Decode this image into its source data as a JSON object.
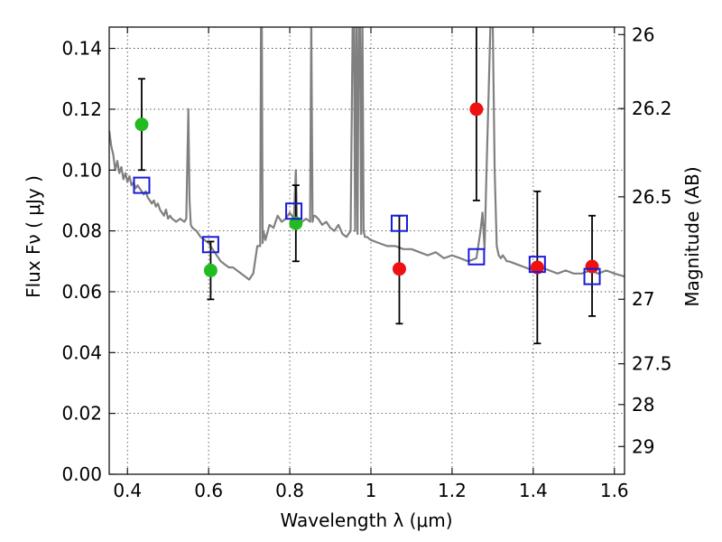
{
  "chart_data": {
    "type": "scatter",
    "xlabel": "Wavelength  λ (μm)",
    "ylabel": "Flux  Fν  ( μJy )",
    "ylabel_right": "Magnitude (AB)",
    "xlim": [
      0.355,
      1.625
    ],
    "ylim": [
      0.0,
      0.147
    ],
    "grid": true,
    "x_ticks": [
      {
        "value": 0.4,
        "label": "0.4"
      },
      {
        "value": 0.6,
        "label": "0.6"
      },
      {
        "value": 0.8,
        "label": "0.8"
      },
      {
        "value": 1.0,
        "label": "1"
      },
      {
        "value": 1.2,
        "label": "1.2"
      },
      {
        "value": 1.4,
        "label": "1.4"
      },
      {
        "value": 1.6,
        "label": "1.6"
      }
    ],
    "y_ticks": [
      {
        "value": 0.0,
        "label": "0.00"
      },
      {
        "value": 0.02,
        "label": "0.02"
      },
      {
        "value": 0.04,
        "label": "0.04"
      },
      {
        "value": 0.06,
        "label": "0.06"
      },
      {
        "value": 0.08,
        "label": "0.08"
      },
      {
        "value": 0.1,
        "label": "0.10"
      },
      {
        "value": 0.12,
        "label": "0.12"
      },
      {
        "value": 0.14,
        "label": "0.14"
      }
    ],
    "right_ticks": [
      {
        "mag": 26.0,
        "label": "26"
      },
      {
        "mag": 26.2,
        "label": "26.2"
      },
      {
        "mag": 26.5,
        "label": "26.5"
      },
      {
        "mag": 27.0,
        "label": "27"
      },
      {
        "mag": 27.5,
        "label": "27.5"
      },
      {
        "mag": 28.0,
        "label": "28"
      },
      {
        "mag": 29.0,
        "label": "29"
      }
    ],
    "colors": {
      "spectrum": "#808080",
      "green_points": "#22bb22",
      "red_points": "#ee1111",
      "model_squares": "#1a1ad8",
      "errorbar": "#000000"
    },
    "spectrum": {
      "x": [
        0.355,
        0.36,
        0.365,
        0.37,
        0.375,
        0.38,
        0.385,
        0.39,
        0.395,
        0.4,
        0.405,
        0.41,
        0.415,
        0.42,
        0.425,
        0.43,
        0.435,
        0.44,
        0.445,
        0.45,
        0.455,
        0.46,
        0.465,
        0.47,
        0.475,
        0.48,
        0.485,
        0.49,
        0.495,
        0.5,
        0.505,
        0.51,
        0.52,
        0.53,
        0.54,
        0.545,
        0.55,
        0.553,
        0.556,
        0.56,
        0.57,
        0.58,
        0.59,
        0.6,
        0.61,
        0.62,
        0.63,
        0.64,
        0.65,
        0.66,
        0.67,
        0.68,
        0.69,
        0.7,
        0.71,
        0.72,
        0.727,
        0.729,
        0.731,
        0.733,
        0.735,
        0.74,
        0.75,
        0.76,
        0.77,
        0.78,
        0.79,
        0.8,
        0.81,
        0.815,
        0.818,
        0.82,
        0.822,
        0.83,
        0.84,
        0.85,
        0.853,
        0.856,
        0.859,
        0.862,
        0.87,
        0.88,
        0.89,
        0.9,
        0.91,
        0.92,
        0.93,
        0.94,
        0.95,
        0.955,
        0.958,
        0.961,
        0.964,
        0.967,
        0.97,
        0.973,
        0.976,
        0.979,
        0.982,
        0.985,
        0.99,
        1.0,
        1.02,
        1.04,
        1.06,
        1.08,
        1.1,
        1.12,
        1.14,
        1.16,
        1.18,
        1.2,
        1.22,
        1.24,
        1.26,
        1.27,
        1.275,
        1.28,
        1.285,
        1.29,
        1.295,
        1.3,
        1.305,
        1.31,
        1.315,
        1.32,
        1.325,
        1.33,
        1.335,
        1.34,
        1.36,
        1.38,
        1.4,
        1.42,
        1.44,
        1.46,
        1.48,
        1.5,
        1.52,
        1.54,
        1.56,
        1.58,
        1.6,
        1.625
      ],
      "y": [
        0.113,
        0.108,
        0.105,
        0.1,
        0.103,
        0.099,
        0.101,
        0.097,
        0.099,
        0.096,
        0.098,
        0.095,
        0.096,
        0.094,
        0.095,
        0.094,
        0.093,
        0.092,
        0.093,
        0.091,
        0.09,
        0.089,
        0.09,
        0.088,
        0.089,
        0.087,
        0.086,
        0.085,
        0.087,
        0.084,
        0.085,
        0.084,
        0.083,
        0.084,
        0.083,
        0.084,
        0.12,
        0.09,
        0.082,
        0.081,
        0.08,
        0.078,
        0.077,
        0.076,
        0.074,
        0.072,
        0.07,
        0.069,
        0.068,
        0.068,
        0.067,
        0.066,
        0.065,
        0.064,
        0.066,
        0.075,
        0.075,
        0.15,
        0.15,
        0.076,
        0.08,
        0.077,
        0.082,
        0.081,
        0.085,
        0.083,
        0.084,
        0.086,
        0.084,
        0.1,
        0.082,
        0.082,
        0.083,
        0.083,
        0.084,
        0.083,
        0.15,
        0.083,
        0.085,
        0.085,
        0.084,
        0.082,
        0.083,
        0.081,
        0.08,
        0.082,
        0.079,
        0.078,
        0.08,
        0.15,
        0.15,
        0.08,
        0.15,
        0.079,
        0.15,
        0.15,
        0.079,
        0.15,
        0.08,
        0.078,
        0.078,
        0.077,
        0.076,
        0.075,
        0.075,
        0.074,
        0.074,
        0.073,
        0.072,
        0.073,
        0.071,
        0.072,
        0.071,
        0.07,
        0.071,
        0.08,
        0.086,
        0.074,
        0.1,
        0.125,
        0.15,
        0.15,
        0.1,
        0.075,
        0.072,
        0.071,
        0.072,
        0.071,
        0.07,
        0.07,
        0.069,
        0.068,
        0.067,
        0.068,
        0.067,
        0.066,
        0.067,
        0.066,
        0.066,
        0.067,
        0.066,
        0.067,
        0.066,
        0.065
      ]
    },
    "series": [
      {
        "marker": "circle",
        "color": "green",
        "points": [
          {
            "x": 0.435,
            "y": 0.115,
            "ylo": 0.1,
            "yhi": 0.13
          },
          {
            "x": 0.605,
            "y": 0.067,
            "ylo": 0.0575,
            "yhi": 0.0765
          },
          {
            "x": 0.815,
            "y": 0.0825,
            "ylo": 0.07,
            "yhi": 0.095
          }
        ]
      },
      {
        "marker": "circle",
        "color": "red",
        "points": [
          {
            "x": 1.07,
            "y": 0.0675,
            "ylo": 0.0495,
            "yhi": 0.085
          },
          {
            "x": 1.26,
            "y": 0.12,
            "ylo": 0.09,
            "yhi": 0.15
          },
          {
            "x": 1.41,
            "y": 0.068,
            "ylo": 0.043,
            "yhi": 0.093
          },
          {
            "x": 1.545,
            "y": 0.0683,
            "ylo": 0.052,
            "yhi": 0.085
          }
        ]
      },
      {
        "marker": "open-square",
        "color": "blue",
        "points": [
          {
            "x": 0.435,
            "y": 0.095
          },
          {
            "x": 0.605,
            "y": 0.0755
          },
          {
            "x": 0.81,
            "y": 0.0865
          },
          {
            "x": 1.07,
            "y": 0.0825
          },
          {
            "x": 1.26,
            "y": 0.0715
          },
          {
            "x": 1.41,
            "y": 0.069
          },
          {
            "x": 1.545,
            "y": 0.065
          }
        ]
      }
    ]
  }
}
